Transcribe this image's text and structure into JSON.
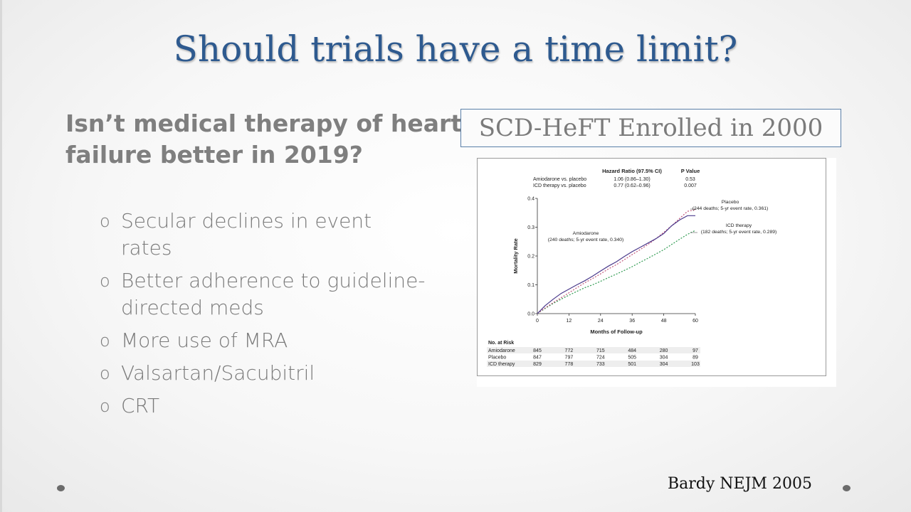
{
  "slide": {
    "title": "Should trials have a time limit?",
    "subhead": "Isn’t medical therapy of heart failure better in 2019?",
    "bullets": [
      "Secular declines in event rates",
      "Better adherence to guideline-directed meds",
      "More use of MRA",
      "Valsartan/Sacubitril",
      "CRT"
    ],
    "bullet_marker": "o",
    "boxed_label": "SCD-HeFT Enrolled in 2000",
    "citation": "Bardy NEJM 2005",
    "colors": {
      "title": "#2e5a8f",
      "text_gray": "#7f7f7f",
      "box_border": "#5a7fa8"
    }
  },
  "chart_data": {
    "type": "line",
    "xlabel": "Months of Follow-up",
    "ylabel": "Mortality Rate",
    "xlim": [
      0,
      60
    ],
    "ylim": [
      0,
      0.4
    ],
    "xticks": [
      0,
      12,
      24,
      36,
      48,
      60
    ],
    "yticks": [
      0.0,
      0.1,
      0.2,
      0.3,
      0.4
    ],
    "ytick_labels": [
      "0.0",
      "0.1",
      "0.2",
      "0.3",
      "0.4"
    ],
    "hr_table": {
      "header": [
        "",
        "Hazard Ratio (97.5% CI)",
        "P Value"
      ],
      "rows": [
        [
          "Amiodarone vs. placebo",
          "1.06 (0.86–1.30)",
          "0.53"
        ],
        [
          "ICD therapy vs. placebo",
          "0.77 (0.62–0.96)",
          "0.007"
        ]
      ]
    },
    "annotations": [
      {
        "lines": [
          "Placebo",
          "(244 deaths; 5-yr event rate, 0.361)"
        ]
      },
      {
        "lines": [
          "ICD therapy",
          "(182 deaths; 5-yr event rate, 0.289)"
        ]
      },
      {
        "lines": [
          "Amiodarone",
          "(240 deaths; 5-yr event rate, 0.340)"
        ]
      }
    ],
    "series": [
      {
        "name": "Amiodarone",
        "color": "#4b3a8c",
        "dash": "",
        "x": [
          0,
          3,
          6,
          9,
          12,
          15,
          18,
          21,
          24,
          27,
          30,
          33,
          36,
          39,
          42,
          45,
          48,
          51,
          54,
          57,
          60
        ],
        "y": [
          0,
          0.028,
          0.05,
          0.07,
          0.085,
          0.1,
          0.114,
          0.13,
          0.148,
          0.165,
          0.18,
          0.198,
          0.215,
          0.23,
          0.245,
          0.26,
          0.278,
          0.305,
          0.325,
          0.34,
          0.34
        ]
      },
      {
        "name": "Placebo",
        "color": "#c0567a",
        "dash": "2,2",
        "x": [
          0,
          3,
          6,
          9,
          12,
          15,
          18,
          21,
          24,
          27,
          30,
          33,
          36,
          39,
          42,
          45,
          48,
          51,
          54,
          57,
          60
        ],
        "y": [
          0,
          0.02,
          0.038,
          0.055,
          0.072,
          0.09,
          0.107,
          0.122,
          0.138,
          0.155,
          0.17,
          0.187,
          0.205,
          0.222,
          0.24,
          0.26,
          0.282,
          0.305,
          0.33,
          0.355,
          0.361
        ]
      },
      {
        "name": "ICD therapy",
        "color": "#2e9a50",
        "dash": "2,2",
        "x": [
          0,
          3,
          6,
          9,
          12,
          15,
          18,
          21,
          24,
          27,
          30,
          33,
          36,
          39,
          42,
          45,
          48,
          51,
          54,
          57,
          60
        ],
        "y": [
          0,
          0.018,
          0.035,
          0.05,
          0.064,
          0.077,
          0.09,
          0.1,
          0.112,
          0.125,
          0.137,
          0.15,
          0.163,
          0.178,
          0.192,
          0.207,
          0.222,
          0.24,
          0.258,
          0.275,
          0.289
        ]
      }
    ],
    "at_risk": {
      "title": "No. at Risk",
      "rows": [
        {
          "label": "Amiodarone",
          "values": [
            845,
            772,
            715,
            484,
            280,
            97
          ]
        },
        {
          "label": "Placebo",
          "values": [
            847,
            797,
            724,
            505,
            304,
            89
          ]
        },
        {
          "label": "ICD therapy",
          "values": [
            829,
            778,
            733,
            501,
            304,
            103
          ]
        }
      ]
    }
  }
}
